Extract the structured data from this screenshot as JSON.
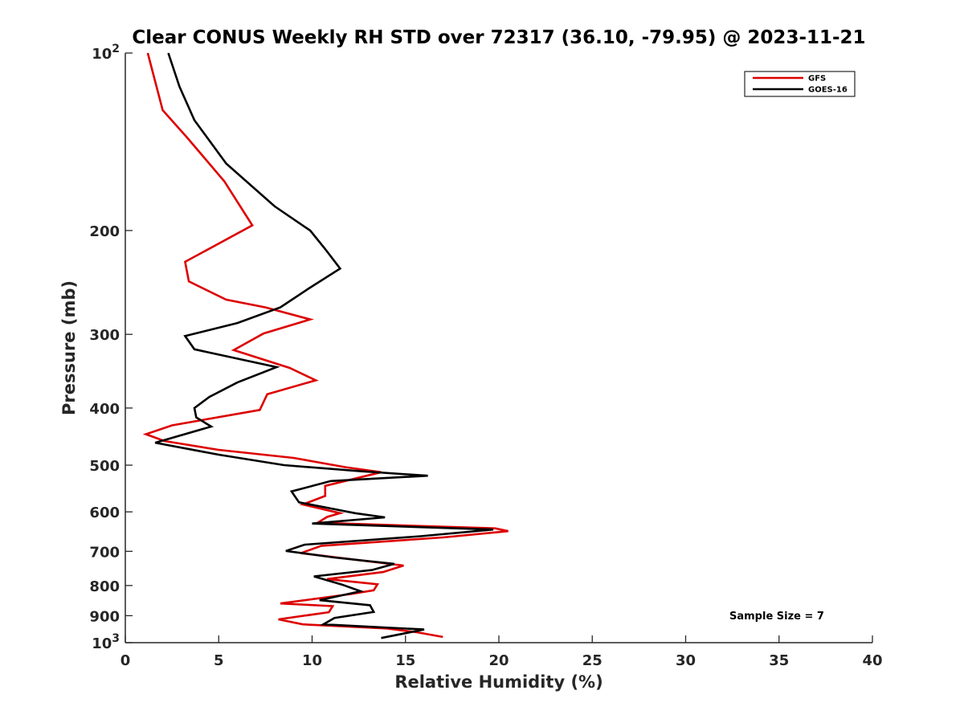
{
  "chart_data": {
    "type": "line",
    "title": "Clear CONUS Weekly RH STD over 72317 (36.10, -79.95) @ 2023-11-21",
    "xlabel": "Relative Humidity (%)",
    "ylabel": "Pressure (mb)",
    "xlim": [
      0,
      40
    ],
    "ylim": [
      100,
      1000
    ],
    "y_scale": "log",
    "y_reversed": true,
    "grid": false,
    "legend_position": "top-right",
    "x_ticks": [
      "0",
      "5",
      "10",
      "15",
      "20",
      "25",
      "30",
      "35",
      "40"
    ],
    "y_ticks": [
      {
        "base": "10",
        "exp": "2",
        "value": 100
      },
      {
        "base": "200",
        "exp": "",
        "value": 200
      },
      {
        "base": "300",
        "exp": "",
        "value": 300
      },
      {
        "base": "400",
        "exp": "",
        "value": 400
      },
      {
        "base": "500",
        "exp": "",
        "value": 500
      },
      {
        "base": "600",
        "exp": "",
        "value": 600
      },
      {
        "base": "700",
        "exp": "",
        "value": 700
      },
      {
        "base": "800",
        "exp": "",
        "value": 800
      },
      {
        "base": "900",
        "exp": "",
        "value": 900
      },
      {
        "base": "10",
        "exp": "3",
        "value": 1000
      }
    ],
    "annotation": "Sample Size = 7",
    "series": [
      {
        "name": "GFS",
        "color": "#dd0000",
        "points": [
          [
            1.2,
            100
          ],
          [
            2.0,
            125
          ],
          [
            3.3,
            139
          ],
          [
            5.3,
            165
          ],
          [
            6.8,
            196
          ],
          [
            3.2,
            226
          ],
          [
            3.4,
            244
          ],
          [
            5.4,
            262
          ],
          [
            7.5,
            270
          ],
          [
            9.9,
            283
          ],
          [
            7.4,
            299
          ],
          [
            5.8,
            319
          ],
          [
            8.8,
            342
          ],
          [
            10.2,
            359
          ],
          [
            7.6,
            379
          ],
          [
            7.2,
            403
          ],
          [
            2.5,
            428
          ],
          [
            1.1,
            443
          ],
          [
            2.1,
            455
          ],
          [
            5.0,
            471
          ],
          [
            9.0,
            486
          ],
          [
            11.8,
            504
          ],
          [
            13.7,
            514
          ],
          [
            10.7,
            542
          ],
          [
            10.7,
            564
          ],
          [
            9.5,
            583
          ],
          [
            11.5,
            603
          ],
          [
            10.8,
            612
          ],
          [
            10.3,
            626
          ],
          [
            19.8,
            640
          ],
          [
            20.5,
            647
          ],
          [
            17.0,
            663
          ],
          [
            10.5,
            685
          ],
          [
            9.4,
            705
          ],
          [
            11.8,
            720
          ],
          [
            14.9,
            740
          ],
          [
            13.8,
            759
          ],
          [
            10.8,
            780
          ],
          [
            13.5,
            796
          ],
          [
            13.3,
            815
          ],
          [
            12.1,
            827
          ],
          [
            8.3,
            858
          ],
          [
            11.1,
            867
          ],
          [
            10.9,
            888
          ],
          [
            8.2,
            913
          ],
          [
            9.5,
            931
          ],
          [
            14.0,
            946
          ],
          [
            15.6,
            960
          ],
          [
            17.0,
            978
          ]
        ]
      },
      {
        "name": "GOES-16",
        "color": "#000000",
        "points": [
          [
            2.3,
            100
          ],
          [
            2.9,
            114
          ],
          [
            3.7,
            130
          ],
          [
            5.4,
            154
          ],
          [
            8.0,
            182
          ],
          [
            9.9,
            200
          ],
          [
            10.7,
            215
          ],
          [
            11.5,
            232
          ],
          [
            9.8,
            251
          ],
          [
            8.3,
            270
          ],
          [
            6.0,
            287
          ],
          [
            3.2,
            302
          ],
          [
            3.7,
            318
          ],
          [
            8.1,
            341
          ],
          [
            6.0,
            362
          ],
          [
            4.5,
            383
          ],
          [
            3.7,
            400
          ],
          [
            3.8,
            415
          ],
          [
            4.6,
            430
          ],
          [
            1.6,
            458
          ],
          [
            5.0,
            480
          ],
          [
            8.5,
            500
          ],
          [
            12.6,
            512
          ],
          [
            16.2,
            521
          ],
          [
            11.0,
            532
          ],
          [
            8.9,
            554
          ],
          [
            9.3,
            578
          ],
          [
            12.3,
            603
          ],
          [
            13.9,
            613
          ],
          [
            10.0,
            628
          ],
          [
            19.7,
            643
          ],
          [
            15.8,
            660
          ],
          [
            9.6,
            682
          ],
          [
            8.6,
            699
          ],
          [
            11.2,
            717
          ],
          [
            14.4,
            735
          ],
          [
            13.2,
            753
          ],
          [
            10.1,
            772
          ],
          [
            11.6,
            797
          ],
          [
            12.6,
            818
          ],
          [
            10.4,
            847
          ],
          [
            13.1,
            864
          ],
          [
            13.3,
            887
          ],
          [
            11.2,
            908
          ],
          [
            10.6,
            931
          ],
          [
            16.0,
            950
          ],
          [
            13.7,
            982
          ]
        ]
      }
    ]
  }
}
